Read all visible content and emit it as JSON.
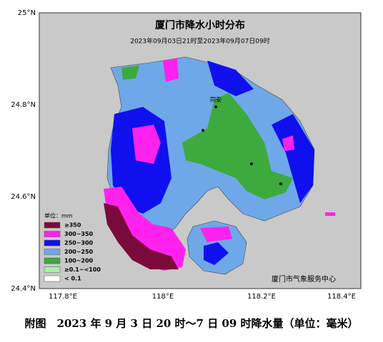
{
  "map": {
    "title": "厦门市降水小时分布",
    "subtitle": "2023年09月03日21时至2023年09月07日09时",
    "lat_ticks": [
      "25°N",
      "24.8°N",
      "24.6°N",
      "24.4°N"
    ],
    "lon_ticks": [
      "117.8°E",
      "118°E",
      "118.2°E",
      "118.4°E"
    ],
    "legend": {
      "title": "单位：mm",
      "items": [
        "≥350",
        "300~350",
        "250~300",
        "200~250",
        "100~200",
        "≥0.1~<100",
        "< 0.1"
      ]
    },
    "place_labels": [
      "同安"
    ],
    "credit": "厦门市气象服务中心"
  },
  "caption": "附图　2023 年 9 月 3 日 20 时～7 日 09 时降水量（单位：毫米）"
}
